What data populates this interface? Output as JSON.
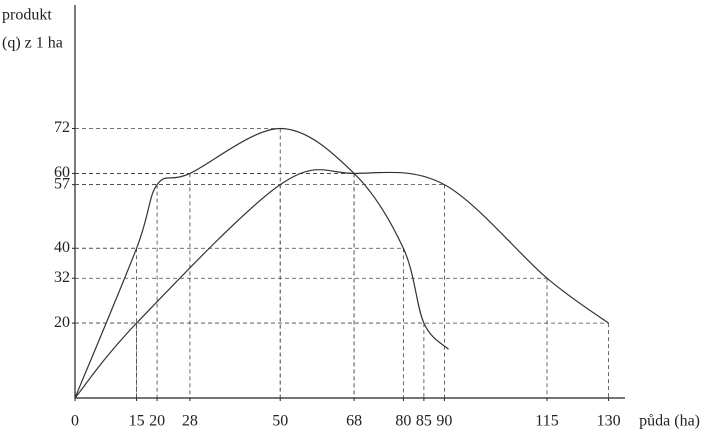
{
  "chart_data": {
    "type": "line",
    "y_label": [
      "produkt",
      "(q) z 1 ha"
    ],
    "x_label": "půda (ha)",
    "xlim": [
      0,
      134
    ],
    "ylim": [
      0,
      105
    ],
    "xticks": [
      0,
      15,
      20,
      28,
      50,
      68,
      80,
      85,
      90,
      115,
      130
    ],
    "yticks": [
      20,
      32,
      40,
      57,
      60,
      72
    ],
    "series": [
      {
        "color": "#333333",
        "x": [
          0,
          15,
          20,
          28,
          50,
          68,
          80,
          85,
          91
        ],
        "values": [
          0,
          40,
          57,
          60,
          72,
          60,
          40,
          20,
          13
        ]
      },
      {
        "color": "#333333",
        "x": [
          0,
          15,
          50,
          68,
          90,
          115,
          130
        ],
        "values": [
          0,
          20,
          57,
          60,
          57,
          32,
          20
        ]
      }
    ]
  }
}
